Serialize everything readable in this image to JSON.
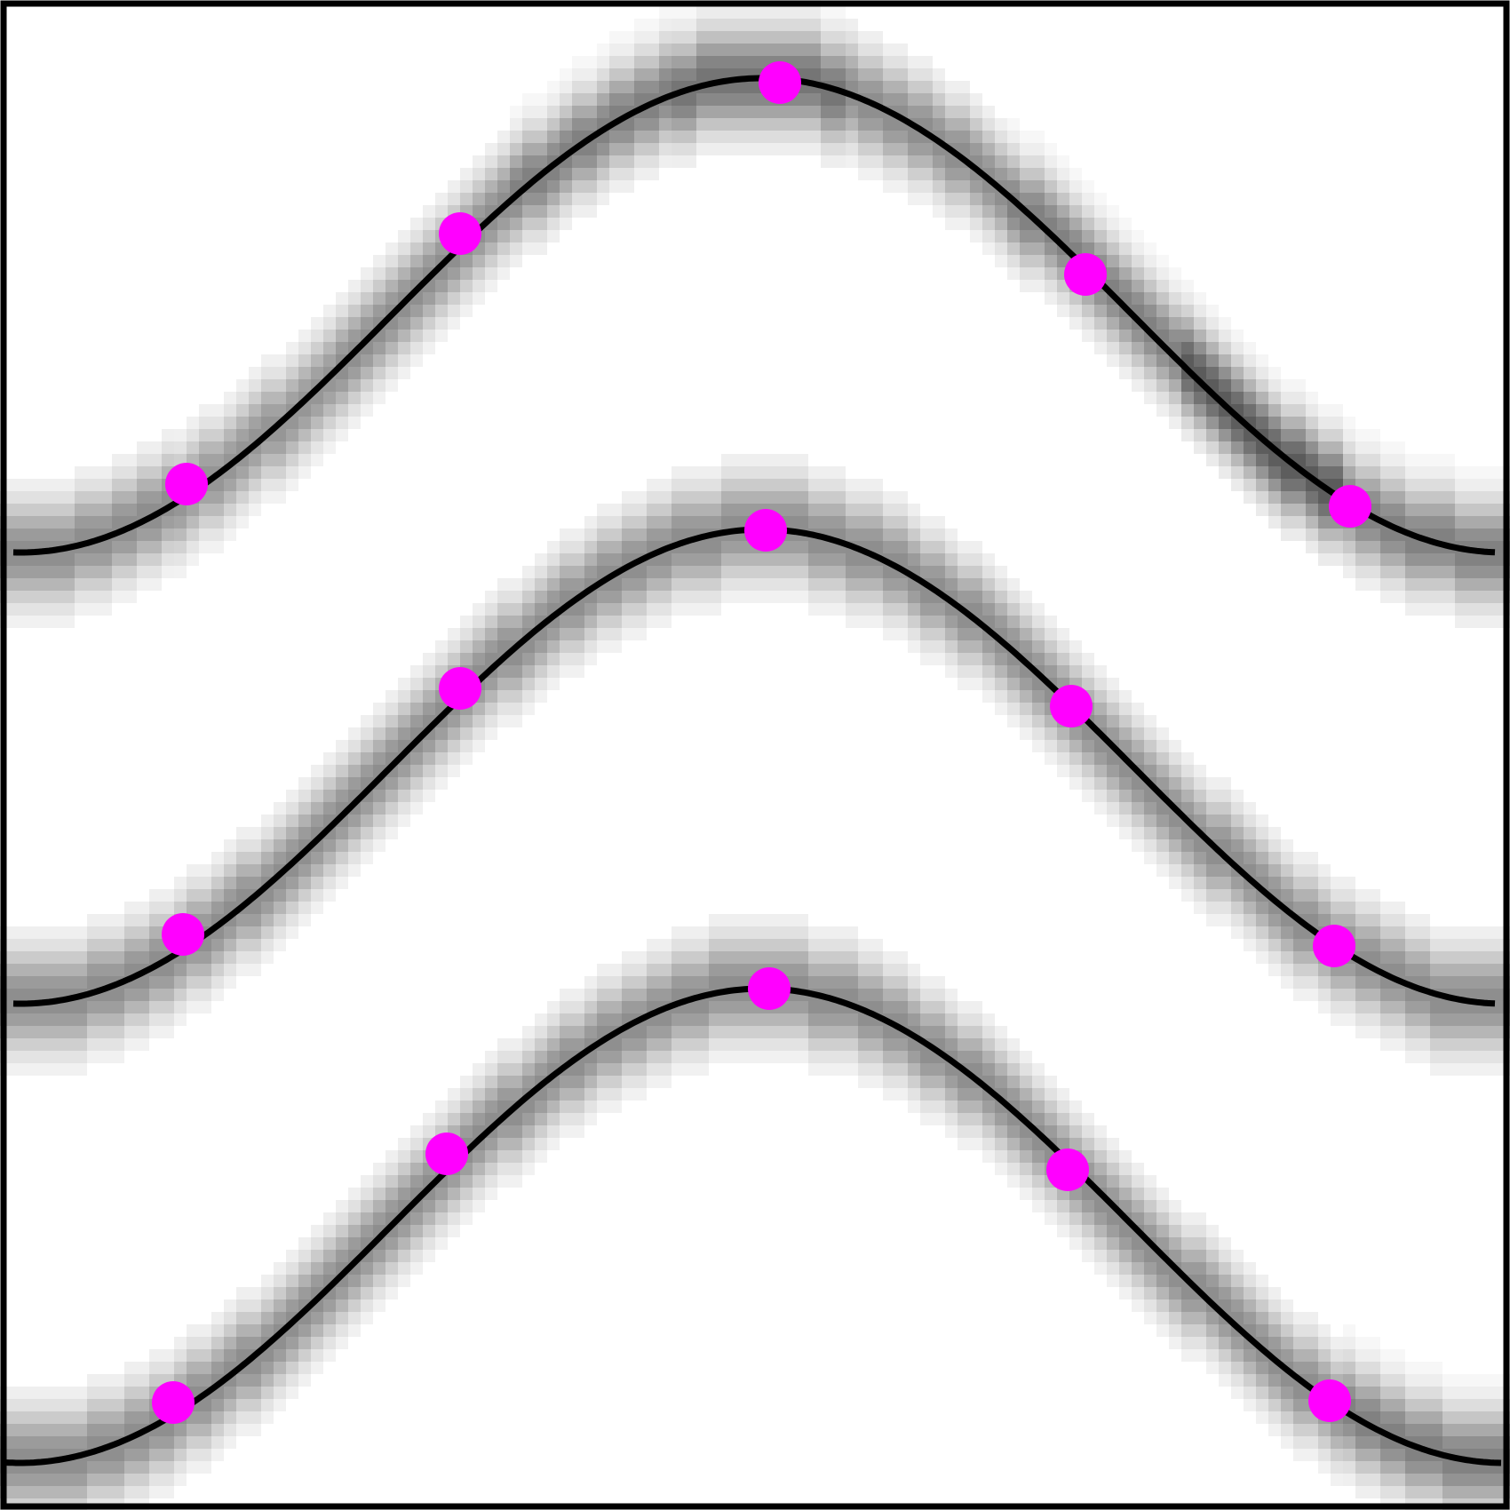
{
  "colors": {
    "background": "#ffffff",
    "frame": "#000000",
    "curve": "#000000",
    "marker": "#ff00ff",
    "band": "#000000"
  },
  "figure": {
    "frame": true,
    "band_style": "pixelated-gaussian"
  },
  "curves": [
    {
      "id": "curve-top",
      "band_darkness": [
        0.45,
        0.42,
        0.45,
        0.5,
        0.55,
        0.45,
        0.5,
        0.65,
        0.5
      ]
    },
    {
      "id": "curve-middle",
      "band_darkness": [
        0.45,
        0.45,
        0.45,
        0.45,
        0.45,
        0.45,
        0.45,
        0.45,
        0.45
      ]
    },
    {
      "id": "curve-bottom",
      "band_darkness": [
        0.45,
        0.45,
        0.45,
        0.45,
        0.45,
        0.45,
        0.45,
        0.45,
        0.5
      ]
    }
  ]
}
